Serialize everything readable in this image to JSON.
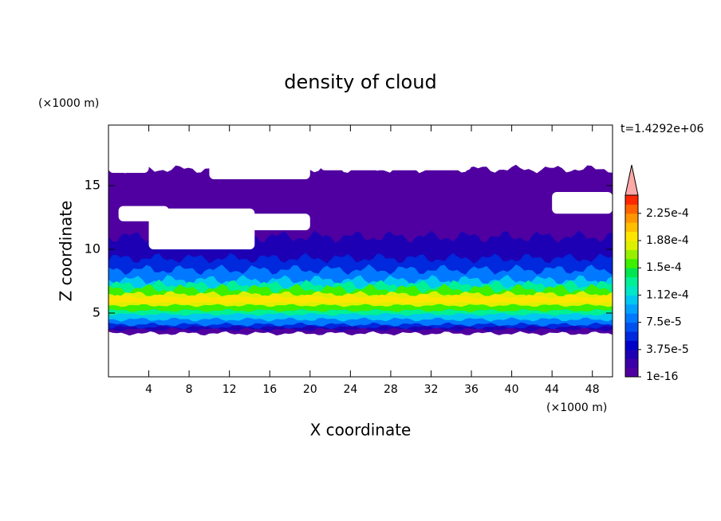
{
  "chart_data": {
    "type": "contour",
    "title": "density of cloud",
    "x_label": "X coordinate",
    "y_label": "Z coordinate",
    "x_unit": "(×1000 m)",
    "y_unit": "(×1000 m)",
    "time_label": "t=1.4292e+06",
    "xlim": [
      0,
      50
    ],
    "xticks": [
      4,
      8,
      12,
      16,
      20,
      24,
      28,
      32,
      36,
      40,
      44,
      48
    ],
    "ylim": [
      0,
      19.75
    ],
    "yticks": [
      5,
      10,
      15
    ],
    "clim": [
      0,
      0.00025
    ],
    "cticks": [
      1e-16,
      {
        "value": 3.75e-05,
        "label": "3.75e-5"
      },
      {
        "value": 7.5e-05,
        "label": "7.5e-5"
      },
      {
        "value": 0.0001125,
        "label": "1.12e-4"
      },
      {
        "value": 0.00015,
        "label": "1.5e-4"
      },
      {
        "value": 0.0001875,
        "label": "1.88e-4"
      },
      {
        "value": 0.000225,
        "label": "2.25e-4"
      }
    ],
    "colors": [
      "#5000a0",
      "#3c00a8",
      "#1e00b4",
      "#0000c8",
      "#0028dc",
      "#0050f0",
      "#0078ff",
      "#00a0ff",
      "#00c8f0",
      "#00e6c8",
      "#00f096",
      "#00e650",
      "#3cf000",
      "#96f000",
      "#dcf000",
      "#ffe600",
      "#ffbe00",
      "#ff9600",
      "#ff6400",
      "#ff2800"
    ],
    "extend_color": "#ffa8a8"
  }
}
